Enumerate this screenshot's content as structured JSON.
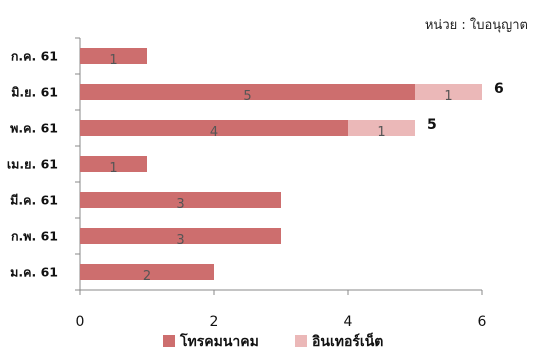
{
  "chart_data": {
    "type": "bar",
    "orientation": "horizontal",
    "stacked": true,
    "unit_note": "หน่วย : ใบอนุญาต",
    "categories": [
      "ม.ค. 61",
      "ก.พ. 61",
      "มี.ค. 61",
      "เม.ย. 61",
      "พ.ค. 61",
      "มิ.ย. 61",
      "ก.ค. 61"
    ],
    "series": [
      {
        "name": "โทรคมนาคม",
        "color": "#cd6e6e",
        "values": [
          2,
          3,
          3,
          1,
          4,
          5,
          1
        ]
      },
      {
        "name": "อินเทอร์เน็ต",
        "color": "#ebb8b8",
        "values": [
          0,
          0,
          0,
          0,
          1,
          1,
          0
        ]
      }
    ],
    "totals": [
      null,
      null,
      null,
      null,
      5,
      6,
      null
    ],
    "xlim": [
      0,
      6
    ],
    "xticks": [
      0,
      2,
      4,
      6
    ],
    "grid": false,
    "legend": "bottom"
  }
}
